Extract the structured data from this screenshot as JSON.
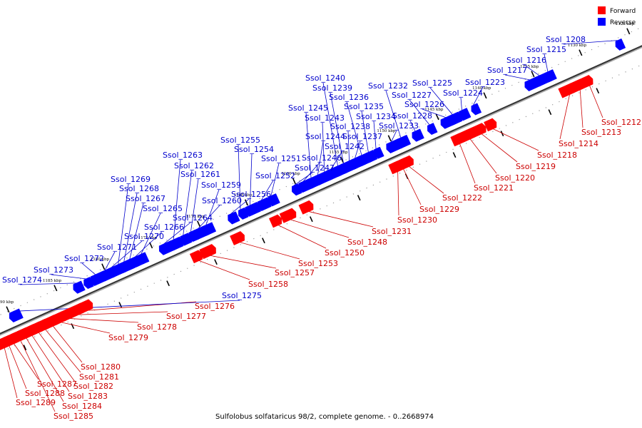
{
  "caption": "Sulfolobus solfataricus 98/2, complete genome. - 0..2668974",
  "legend": [
    {
      "label": "Forward",
      "color": "#ff0000"
    },
    {
      "label": "Reverse",
      "color": "#0000ff"
    }
  ],
  "colors": {
    "forward": "#ff0000",
    "reverse": "#0000ff",
    "forward_line": "#cc0000",
    "reverse_line": "#0000cc"
  },
  "axis": {
    "range_kbp": [
      1124,
      1192
    ],
    "ticks": [
      "1125 kbp",
      "1130 kbp",
      "1135 kbp",
      "1140 kbp",
      "1145 kbp",
      "1150 kbp",
      "1155 kbp",
      "1160 kbp",
      "1165 kbp",
      "1170 kbp",
      "1175 kbp",
      "1180 kbp",
      "1185 kbp",
      "1190 kbp"
    ]
  },
  "forward_genes": [
    {
      "name": "Ssol_1212",
      "pos_kbp": 1130.5
    },
    {
      "name": "Ssol_1213",
      "pos_kbp": 1131.5
    },
    {
      "name": "Ssol_1214",
      "pos_kbp": 1132.6
    },
    {
      "name": "Ssol_1218",
      "pos_kbp": 1140.6
    },
    {
      "name": "Ssol_1219",
      "pos_kbp": 1141.8
    },
    {
      "name": "Ssol_1220",
      "pos_kbp": 1143.0
    },
    {
      "name": "Ssol_1221",
      "pos_kbp": 1144.1
    },
    {
      "name": "Ssol_1222",
      "pos_kbp": 1149.4
    },
    {
      "name": "Ssol_1229",
      "pos_kbp": 1150.0
    },
    {
      "name": "Ssol_1230",
      "pos_kbp": 1150.6
    },
    {
      "name": "Ssol_1231",
      "pos_kbp": 1159.9
    },
    {
      "name": "Ssol_1248",
      "pos_kbp": 1161.8
    },
    {
      "name": "Ssol_1250",
      "pos_kbp": 1163.1
    },
    {
      "name": "Ssol_1253",
      "pos_kbp": 1167.1
    },
    {
      "name": "Ssol_1257",
      "pos_kbp": 1170.2
    },
    {
      "name": "Ssol_1258",
      "pos_kbp": 1171.4
    },
    {
      "name": "Ssol_1276",
      "pos_kbp": 1183.0
    },
    {
      "name": "Ssol_1277",
      "pos_kbp": 1184.0
    },
    {
      "name": "Ssol_1278",
      "pos_kbp": 1184.9
    },
    {
      "name": "Ssol_1279",
      "pos_kbp": 1185.8
    },
    {
      "name": "Ssol_1280",
      "pos_kbp": 1186.7
    },
    {
      "name": "Ssol_1281",
      "pos_kbp": 1187.5
    },
    {
      "name": "Ssol_1282",
      "pos_kbp": 1188.2
    },
    {
      "name": "Ssol_1283",
      "pos_kbp": 1188.9
    },
    {
      "name": "Ssol_1284",
      "pos_kbp": 1189.5
    },
    {
      "name": "Ssol_1285",
      "pos_kbp": 1190.1
    },
    {
      "name": "Ssol_1287",
      "pos_kbp": 1190.8
    },
    {
      "name": "Ssol_1288",
      "pos_kbp": 1191.3
    },
    {
      "name": "Ssol_1289",
      "pos_kbp": 1191.8
    }
  ],
  "reverse_genes": [
    {
      "name": "Ssol_1208",
      "pos_kbp": 1126.3
    },
    {
      "name": "Ssol_1215",
      "pos_kbp": 1133.6
    },
    {
      "name": "Ssol_1216",
      "pos_kbp": 1134.5
    },
    {
      "name": "Ssol_1217",
      "pos_kbp": 1135.5
    },
    {
      "name": "Ssol_1223",
      "pos_kbp": 1141.4
    },
    {
      "name": "Ssol_1224",
      "pos_kbp": 1142.6
    },
    {
      "name": "Ssol_1225",
      "pos_kbp": 1143.6
    },
    {
      "name": "Ssol_1226",
      "pos_kbp": 1144.3
    },
    {
      "name": "Ssol_1227",
      "pos_kbp": 1146.0
    },
    {
      "name": "Ssol_1228",
      "pos_kbp": 1147.5
    },
    {
      "name": "Ssol_1232",
      "pos_kbp": 1149.0
    },
    {
      "name": "Ssol_1233",
      "pos_kbp": 1150.0
    },
    {
      "name": "Ssol_1234",
      "pos_kbp": 1151.6
    },
    {
      "name": "Ssol_1235",
      "pos_kbp": 1152.4
    },
    {
      "name": "Ssol_1236",
      "pos_kbp": 1153.1
    },
    {
      "name": "Ssol_1237",
      "pos_kbp": 1153.8
    },
    {
      "name": "Ssol_1238",
      "pos_kbp": 1154.4
    },
    {
      "name": "Ssol_1239",
      "pos_kbp": 1155.0
    },
    {
      "name": "Ssol_1240",
      "pos_kbp": 1155.6
    },
    {
      "name": "Ssol_1242",
      "pos_kbp": 1156.3
    },
    {
      "name": "Ssol_1243",
      "pos_kbp": 1157.0
    },
    {
      "name": "Ssol_1244",
      "pos_kbp": 1157.7
    },
    {
      "name": "Ssol_1245",
      "pos_kbp": 1158.4
    },
    {
      "name": "Ssol_1246",
      "pos_kbp": 1159.2
    },
    {
      "name": "Ssol_1247",
      "pos_kbp": 1160.2
    },
    {
      "name": "Ssol_1251",
      "pos_kbp": 1162.6
    },
    {
      "name": "Ssol_1252",
      "pos_kbp": 1163.6
    },
    {
      "name": "Ssol_1254",
      "pos_kbp": 1164.8
    },
    {
      "name": "Ssol_1255",
      "pos_kbp": 1165.8
    },
    {
      "name": "Ssol_1256",
      "pos_kbp": 1166.8
    },
    {
      "name": "Ssol_1259",
      "pos_kbp": 1169.4
    },
    {
      "name": "Ssol_1260",
      "pos_kbp": 1170.2
    },
    {
      "name": "Ssol_1261",
      "pos_kbp": 1171.0
    },
    {
      "name": "Ssol_1262",
      "pos_kbp": 1171.8
    },
    {
      "name": "Ssol_1263",
      "pos_kbp": 1172.8
    },
    {
      "name": "Ssol_1264",
      "pos_kbp": 1173.8
    },
    {
      "name": "Ssol_1265",
      "pos_kbp": 1176.2
    },
    {
      "name": "Ssol_1266",
      "pos_kbp": 1176.8
    },
    {
      "name": "Ssol_1267",
      "pos_kbp": 1177.4
    },
    {
      "name": "Ssol_1268",
      "pos_kbp": 1178.0
    },
    {
      "name": "Ssol_1269",
      "pos_kbp": 1178.6
    },
    {
      "name": "Ssol_1270",
      "pos_kbp": 1179.3
    },
    {
      "name": "Ssol_1271",
      "pos_kbp": 1180.0
    },
    {
      "name": "Ssol_1272",
      "pos_kbp": 1181.0
    },
    {
      "name": "Ssol_1273",
      "pos_kbp": 1182.0
    },
    {
      "name": "Ssol_1274",
      "pos_kbp": 1183.0
    },
    {
      "name": "Ssol_1275",
      "pos_kbp": 1189.6
    }
  ]
}
